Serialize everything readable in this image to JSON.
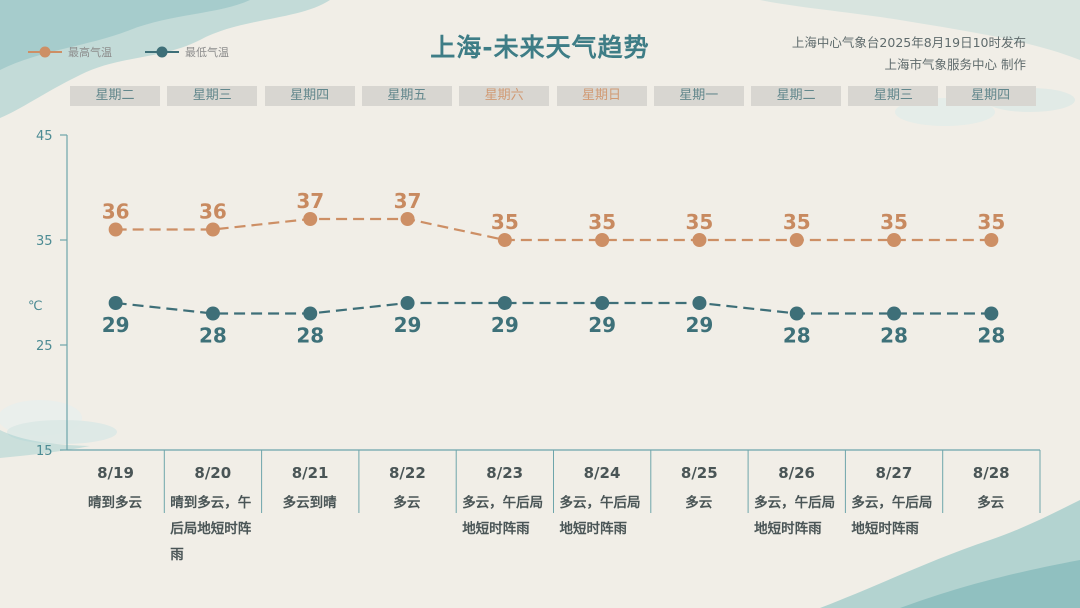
{
  "title": "上海-未来天气趋势",
  "publisher": {
    "line1": "上海中心气象台2025年8月19日10时发布",
    "line2": "上海市气象服务中心 制作"
  },
  "legend": {
    "max": "最高气温",
    "min": "最低气温"
  },
  "unit": "℃",
  "colors": {
    "max": "#cd8f65",
    "min": "#3e6f78",
    "title": "#3e7d86",
    "axis": "#6ea5ab"
  },
  "days": [
    {
      "weekday": "星期二",
      "date": "8/19",
      "weather": "晴到多云",
      "weekend": false
    },
    {
      "weekday": "星期三",
      "date": "8/20",
      "weather": "晴到多云，午后局地短时阵雨",
      "weekend": false
    },
    {
      "weekday": "星期四",
      "date": "8/21",
      "weather": "多云到晴",
      "weekend": false
    },
    {
      "weekday": "星期五",
      "date": "8/22",
      "weather": "多云",
      "weekend": false
    },
    {
      "weekday": "星期六",
      "date": "8/23",
      "weather": "多云，午后局地短时阵雨",
      "weekend": true
    },
    {
      "weekday": "星期日",
      "date": "8/24",
      "weather": "多云，午后局地短时阵雨",
      "weekend": true
    },
    {
      "weekday": "星期一",
      "date": "8/25",
      "weather": "多云",
      "weekend": false
    },
    {
      "weekday": "星期二",
      "date": "8/26",
      "weather": "多云，午后局地短时阵雨",
      "weekend": false
    },
    {
      "weekday": "星期三",
      "date": "8/27",
      "weather": "多云，午后局地短时阵雨",
      "weekend": false
    },
    {
      "weekday": "星期四",
      "date": "8/28",
      "weather": "多云",
      "weekend": false
    }
  ],
  "chart_data": {
    "type": "line",
    "x": [
      "8/19",
      "8/20",
      "8/21",
      "8/22",
      "8/23",
      "8/24",
      "8/25",
      "8/26",
      "8/27",
      "8/28"
    ],
    "series": [
      {
        "name": "最高气温",
        "values": [
          36,
          36,
          37,
          37,
          35,
          35,
          35,
          35,
          35,
          35
        ]
      },
      {
        "name": "最低气温",
        "values": [
          29,
          28,
          28,
          29,
          29,
          29,
          29,
          28,
          28,
          28
        ]
      }
    ],
    "ylabel": "℃",
    "ylim": [
      15,
      45
    ],
    "yticks": [
      15,
      25,
      35,
      45
    ],
    "grid": false,
    "legend_position": "top-left"
  }
}
